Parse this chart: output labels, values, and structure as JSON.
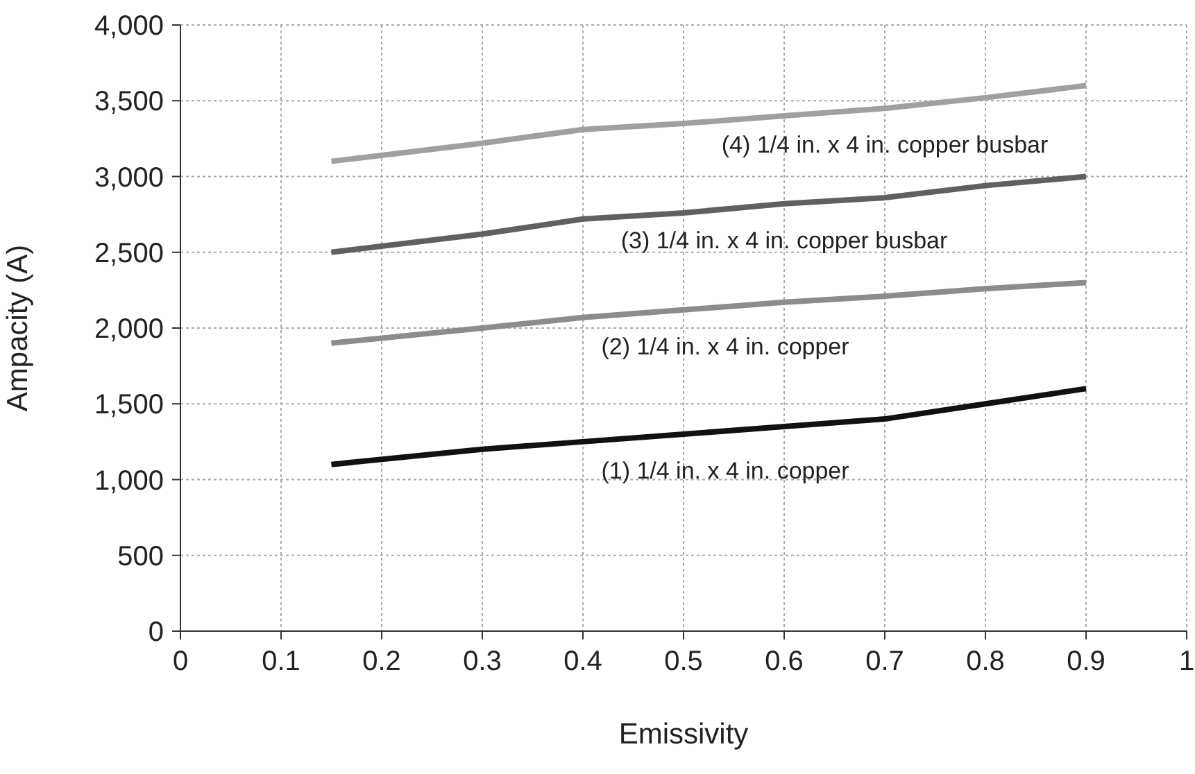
{
  "chart_data": {
    "type": "line",
    "xlabel": "Emissivity",
    "ylabel": "Ampacity (A)",
    "xlim": [
      0,
      1
    ],
    "xticks": [
      0,
      0.1,
      0.2,
      0.3,
      0.4,
      0.5,
      0.6,
      0.7,
      0.8,
      0.9,
      1
    ],
    "ylim": [
      0,
      4000
    ],
    "yticks": [
      {
        "value": 0,
        "label": "0"
      },
      {
        "value": 500,
        "label": "500"
      },
      {
        "value": 1000,
        "label": "1,000"
      },
      {
        "value": 1500,
        "label": "1,500"
      },
      {
        "value": 2000,
        "label": "2,000"
      },
      {
        "value": 2500,
        "label": "2,500"
      },
      {
        "value": 3000,
        "label": "3,000"
      },
      {
        "value": 3500,
        "label": "3,500"
      },
      {
        "value": 4000,
        "label": "4,000"
      }
    ],
    "grid": true,
    "marker": "none",
    "line_style": "solid",
    "series": [
      {
        "name": "(1) 1/4 in. x 4 in. copper",
        "color": "#111111",
        "x": [
          0.15,
          0.3,
          0.4,
          0.5,
          0.6,
          0.7,
          0.8,
          0.9
        ],
        "values": [
          1100,
          1200,
          1250,
          1300,
          1350,
          1400,
          1500,
          1600
        ]
      },
      {
        "name": "(2) 1/4 in. x 4 in. copper",
        "color": "#8c8c8c",
        "x": [
          0.15,
          0.3,
          0.4,
          0.5,
          0.6,
          0.7,
          0.8,
          0.9
        ],
        "values": [
          1900,
          2000,
          2070,
          2120,
          2170,
          2210,
          2260,
          2300
        ]
      },
      {
        "name": "(3) 1/4 in. x 4 in. copper busbar",
        "color": "#606060",
        "x": [
          0.15,
          0.3,
          0.4,
          0.5,
          0.6,
          0.7,
          0.8,
          0.9
        ],
        "values": [
          2500,
          2620,
          2720,
          2760,
          2820,
          2860,
          2940,
          3000
        ]
      },
      {
        "name": "(4) 1/4 in. x 4 in. copper busbar",
        "color": "#a0a0a0",
        "x": [
          0.15,
          0.3,
          0.4,
          0.5,
          0.6,
          0.7,
          0.8,
          0.9
        ],
        "values": [
          3100,
          3220,
          3310,
          3350,
          3400,
          3450,
          3520,
          3600
        ]
      }
    ]
  }
}
